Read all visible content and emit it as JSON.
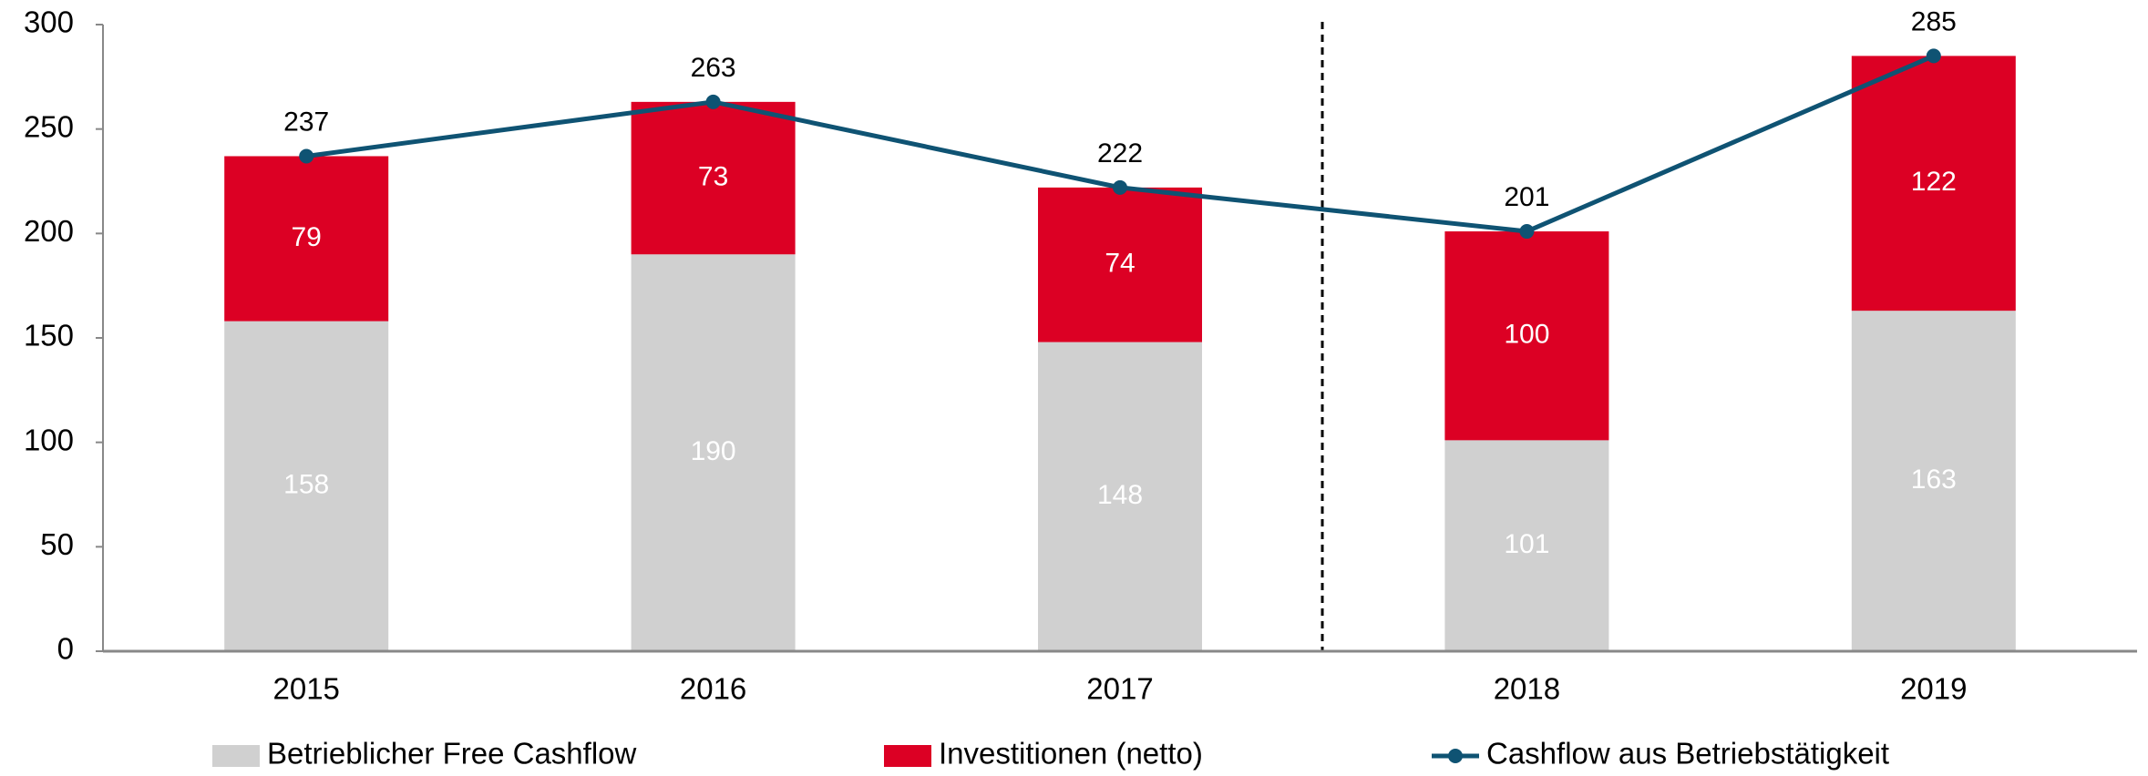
{
  "chart_data": {
    "type": "bar",
    "stacked": true,
    "categories": [
      "2015",
      "2016",
      "2017",
      "2018",
      "2019"
    ],
    "series": [
      {
        "name": "Betrieblicher Free Cashflow",
        "type": "bar",
        "color": "#d0d0d0",
        "values": [
          158,
          190,
          148,
          101,
          163
        ]
      },
      {
        "name": "Investitionen (netto)",
        "type": "bar",
        "color": "#dc0024",
        "values": [
          79,
          73,
          74,
          100,
          122
        ]
      },
      {
        "name": "Cashflow aus Betriebstätigkeit",
        "type": "line",
        "color": "#0f5373",
        "values": [
          237,
          263,
          222,
          201,
          285
        ]
      }
    ],
    "ylim": [
      0,
      300
    ],
    "yticks": [
      0,
      50,
      100,
      150,
      200,
      250,
      300
    ],
    "grid": false,
    "legend": "bottom"
  }
}
